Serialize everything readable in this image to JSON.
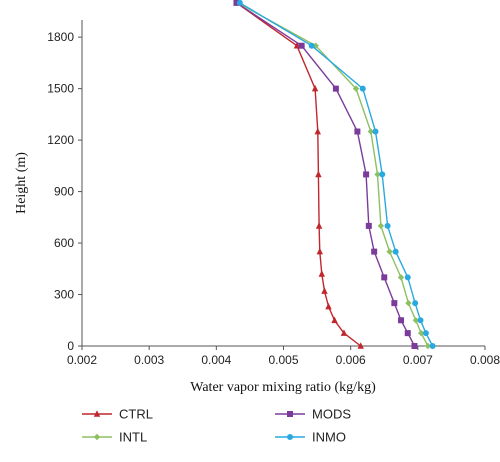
{
  "chart_data": {
    "type": "line",
    "title": "",
    "xlabel": "Water vapor mixing ratio (kg/kg)",
    "ylabel": "Height (m)",
    "xlim": [
      0.002,
      0.008
    ],
    "ylim": [
      0,
      1900
    ],
    "x_ticks": [
      "0.002",
      "0.003",
      "0.004",
      "0.005",
      "0.006",
      "0.007",
      "0.008"
    ],
    "y_ticks": [
      "0",
      "300",
      "600",
      "900",
      "1200",
      "1500",
      "1800"
    ],
    "legend_position": "bottom",
    "series": [
      {
        "name": "CTRL",
        "color": "#c0272d",
        "marker": "triangle",
        "points": [
          [
            0.00615,
            0
          ],
          [
            0.0059,
            75
          ],
          [
            0.00576,
            150
          ],
          [
            0.00567,
            230
          ],
          [
            0.00561,
            320
          ],
          [
            0.00557,
            420
          ],
          [
            0.00554,
            550
          ],
          [
            0.00553,
            700
          ],
          [
            0.00552,
            1000
          ],
          [
            0.00551,
            1250
          ],
          [
            0.00547,
            1500
          ],
          [
            0.0052,
            1750
          ],
          [
            0.0043,
            2000
          ]
        ]
      },
      {
        "name": "INTL",
        "color": "#8dc063",
        "marker": "diamond",
        "points": [
          [
            0.00715,
            0
          ],
          [
            0.00705,
            75
          ],
          [
            0.00697,
            150
          ],
          [
            0.00686,
            250
          ],
          [
            0.00675,
            400
          ],
          [
            0.00658,
            550
          ],
          [
            0.00645,
            700
          ],
          [
            0.0064,
            1000
          ],
          [
            0.0063,
            1250
          ],
          [
            0.00608,
            1500
          ],
          [
            0.00548,
            1750
          ],
          [
            0.00432,
            2000
          ]
        ]
      },
      {
        "name": "MODS",
        "color": "#7b3b9b",
        "marker": "square",
        "points": [
          [
            0.00695,
            0
          ],
          [
            0.00685,
            75
          ],
          [
            0.00675,
            150
          ],
          [
            0.00665,
            250
          ],
          [
            0.0065,
            400
          ],
          [
            0.00635,
            550
          ],
          [
            0.00627,
            700
          ],
          [
            0.00623,
            1000
          ],
          [
            0.0061,
            1250
          ],
          [
            0.00578,
            1500
          ],
          [
            0.00527,
            1750
          ],
          [
            0.0043,
            2000
          ]
        ]
      },
      {
        "name": "INMO",
        "color": "#2aa9e0",
        "marker": "circle",
        "points": [
          [
            0.00722,
            0
          ],
          [
            0.00712,
            75
          ],
          [
            0.00704,
            150
          ],
          [
            0.00696,
            250
          ],
          [
            0.00685,
            400
          ],
          [
            0.00667,
            550
          ],
          [
            0.00655,
            700
          ],
          [
            0.00647,
            1000
          ],
          [
            0.00637,
            1250
          ],
          [
            0.00618,
            1500
          ],
          [
            0.00542,
            1750
          ],
          [
            0.00435,
            2000
          ]
        ]
      }
    ]
  }
}
